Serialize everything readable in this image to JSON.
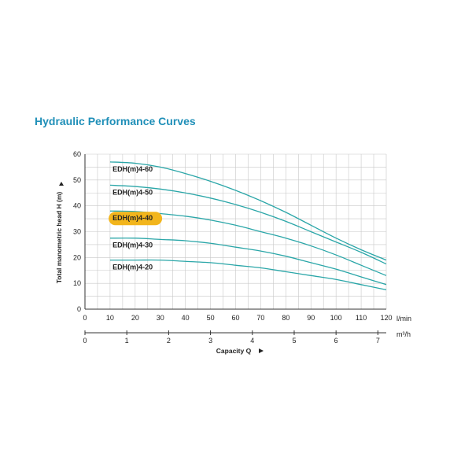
{
  "page": {
    "title": "Hydraulic Performance Curves"
  },
  "chart_data": {
    "type": "line",
    "title": "Hydraulic Performance Curves",
    "ylabel": "Total manometric head H (m)",
    "xlabel": "Capacity Q",
    "x_unit": "l/min",
    "x2_unit": "m³/h",
    "xlim": [
      0,
      120
    ],
    "ylim": [
      0,
      60
    ],
    "x_ticks": [
      0,
      10,
      20,
      30,
      40,
      50,
      60,
      70,
      80,
      90,
      100,
      110,
      120
    ],
    "y_ticks": [
      0,
      10,
      20,
      30,
      40,
      50,
      60
    ],
    "x2_ticks": [
      0,
      1,
      2,
      3,
      4,
      5,
      6,
      7
    ],
    "grid": true,
    "line_color": "#2aa6a8",
    "highlight_color": "#f2b51c",
    "highlight_series": "EDH(m)4-40",
    "series": [
      {
        "name": "EDH(m)4-60",
        "x": [
          10,
          20,
          30,
          40,
          50,
          60,
          70,
          80,
          90,
          100,
          110,
          120
        ],
        "values": [
          57,
          56.5,
          55,
          52.5,
          49.5,
          46,
          42,
          37.5,
          32.5,
          27.5,
          23,
          19
        ]
      },
      {
        "name": "EDH(m)4-50",
        "x": [
          10,
          20,
          30,
          40,
          50,
          60,
          70,
          80,
          90,
          100,
          110,
          120
        ],
        "values": [
          48,
          47.5,
          46.5,
          45,
          43,
          40.5,
          37.5,
          34,
          30,
          26,
          22,
          17.5
        ]
      },
      {
        "name": "EDH(m)4-40",
        "x": [
          10,
          20,
          30,
          40,
          50,
          60,
          70,
          80,
          90,
          100,
          110,
          120
        ],
        "values": [
          38,
          37.8,
          37,
          36,
          34.5,
          32.5,
          30,
          27.5,
          24.5,
          21,
          17,
          13
        ]
      },
      {
        "name": "EDH(m)4-30",
        "x": [
          10,
          20,
          30,
          40,
          50,
          60,
          70,
          80,
          90,
          100,
          110,
          120
        ],
        "values": [
          27.5,
          27.5,
          27,
          26.5,
          25.5,
          24,
          22.5,
          20.5,
          18,
          15.5,
          12.5,
          9.5
        ]
      },
      {
        "name": "EDH(m)4-20",
        "x": [
          10,
          20,
          30,
          40,
          50,
          60,
          70,
          80,
          90,
          100,
          110,
          120
        ],
        "values": [
          19,
          19,
          19,
          18.5,
          18,
          17,
          16,
          14.5,
          13,
          11.5,
          9.5,
          7.5
        ]
      }
    ]
  }
}
